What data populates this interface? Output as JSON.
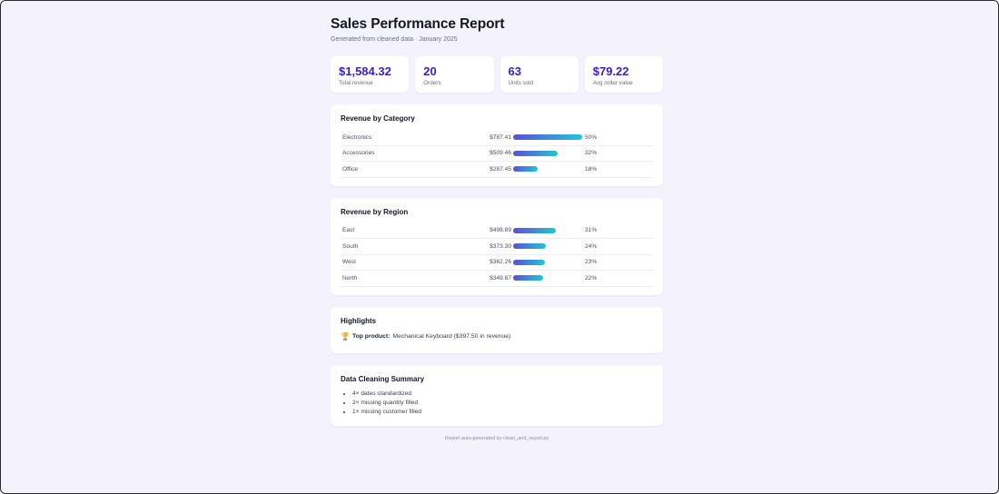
{
  "report": {
    "title": "Sales Performance Report",
    "subtitle": "Generated from cleaned data · January 2025"
  },
  "stats": [
    {
      "value": "$1,584.32",
      "label": "Total revenue"
    },
    {
      "value": "20",
      "label": "Orders"
    },
    {
      "value": "63",
      "label": "Units sold"
    },
    {
      "value": "$79.22",
      "label": "Avg order value"
    }
  ],
  "category": {
    "title": "Revenue by Category",
    "rows": [
      {
        "name": "Electronics",
        "amount": "$787.41",
        "pct_label": "50%",
        "pct": 50
      },
      {
        "name": "Accessories",
        "amount": "$509.46",
        "pct_label": "32%",
        "pct": 32
      },
      {
        "name": "Office",
        "amount": "$287.45",
        "pct_label": "18%",
        "pct": 18
      }
    ]
  },
  "region": {
    "title": "Revenue by Region",
    "rows": [
      {
        "name": "East",
        "amount": "$498.89",
        "pct_label": "31%",
        "pct": 31
      },
      {
        "name": "South",
        "amount": "$373.30",
        "pct_label": "24%",
        "pct": 24
      },
      {
        "name": "West",
        "amount": "$362.26",
        "pct_label": "23%",
        "pct": 23
      },
      {
        "name": "North",
        "amount": "$349.87",
        "pct_label": "22%",
        "pct": 22
      }
    ]
  },
  "highlights": {
    "title": "Highlights",
    "icon": "trophy-icon",
    "label": "Top product:",
    "text": "Mechanical Keyboard ($397.50 in revenue)"
  },
  "cleaning": {
    "title": "Data Cleaning Summary",
    "items": [
      "4× dates standardized",
      "2× missing quantity filled",
      "1× missing customer filled"
    ]
  },
  "footer": "Report auto-generated by clean_and_report.py",
  "colors": {
    "accent": "#3a1fc5",
    "bar_start": "#5a4fd8",
    "bar_end": "#22c7d2",
    "background": "#f4f3fd"
  }
}
